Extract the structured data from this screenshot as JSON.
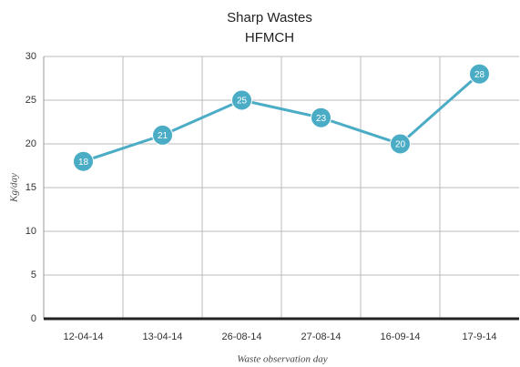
{
  "chart_data": {
    "type": "line",
    "title": "Sharp Wastes",
    "subtitle": "HFMCH",
    "x_label": "Waste observation day",
    "y_label": "Kg/day",
    "categories": [
      "12-04-14",
      "13-04-14",
      "26-08-14",
      "27-08-14",
      "16-09-14",
      "17-9-14"
    ],
    "series": [
      {
        "name": "Sharp Wastes",
        "color": "#4bacc6",
        "values": [
          18,
          21,
          25,
          23,
          20,
          28
        ]
      }
    ],
    "ylim": [
      0,
      30
    ],
    "yticks": [
      0,
      5,
      10,
      15,
      20,
      25,
      30
    ],
    "grid": true,
    "data_labels": true
  }
}
